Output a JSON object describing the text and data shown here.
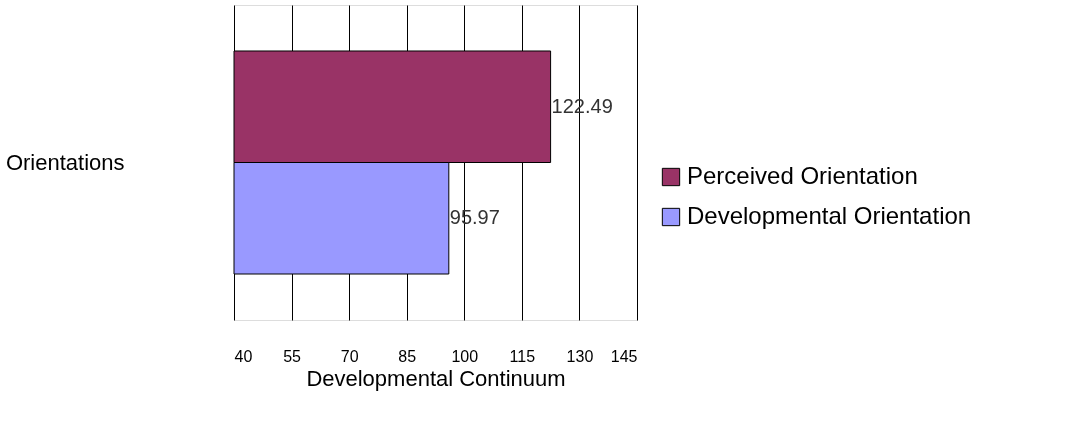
{
  "chart_data": {
    "type": "bar",
    "orientation": "horizontal",
    "categories": [
      "Orientations"
    ],
    "xlabel": "Developmental Continuum",
    "series": [
      {
        "name": "Perceived Orientation",
        "color": "#993366",
        "values": [
          122.49
        ]
      },
      {
        "name": "Developmental Orientation",
        "color": "#9999ff",
        "values": [
          95.97
        ]
      }
    ],
    "xlim": [
      40,
      145
    ],
    "xticks": [
      40,
      55,
      70,
      85,
      100,
      115,
      130,
      145
    ],
    "grid": "x",
    "legend": "right",
    "data_labels": true
  }
}
